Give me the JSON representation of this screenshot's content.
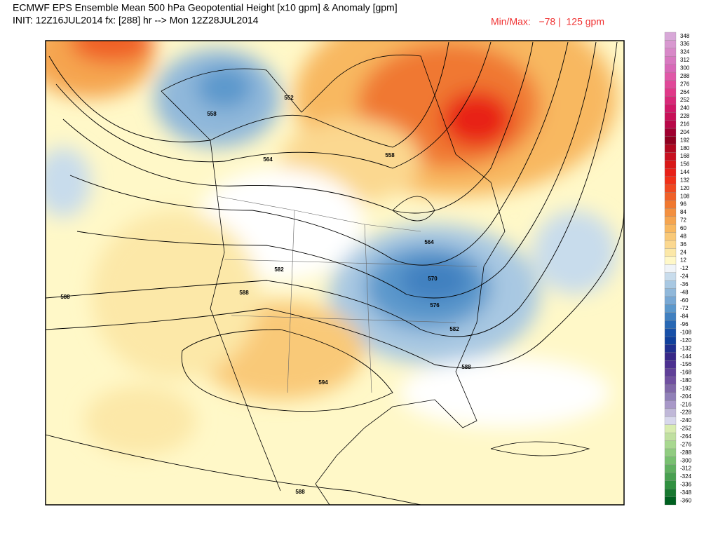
{
  "header": {
    "title": "ECMWF EPS Ensemble Mean 500 hPa Geopotential Height [x10 gpm] & Anomaly [gpm]",
    "init": "INIT: 12Z16JUL2014 fx: [288] hr --> Mon 12Z28JUL2014",
    "min_max": "Min/Max:   −78 |  125 gpm"
  },
  "contour_labels": [
    "552",
    "558",
    "564",
    "558",
    "564",
    "582",
    "588",
    "570",
    "576",
    "582",
    "588",
    "594",
    "588",
    "588"
  ],
  "colorbar": {
    "levels": [
      348,
      336,
      324,
      312,
      300,
      288,
      276,
      264,
      252,
      240,
      228,
      216,
      204,
      192,
      180,
      168,
      156,
      144,
      132,
      120,
      108,
      96,
      84,
      72,
      60,
      48,
      36,
      24,
      12,
      -12,
      -24,
      -36,
      -48,
      -60,
      -72,
      -84,
      -96,
      -108,
      -120,
      -132,
      -144,
      -156,
      -168,
      -180,
      -192,
      -204,
      -216,
      -228,
      -240,
      -252,
      -264,
      -276,
      -288,
      -300,
      -312,
      -324,
      -336,
      -348,
      -360
    ],
    "colors": [
      "#d8a8d8",
      "#d898d0",
      "#d888c8",
      "#d878c0",
      "#d868b8",
      "#e058a8",
      "#e04898",
      "#e03888",
      "#d82878",
      "#d01868",
      "#c81058",
      "#b80848",
      "#a00030",
      "#900020",
      "#b00820",
      "#c81020",
      "#d81818",
      "#e82018",
      "#f03018",
      "#f04820",
      "#f06028",
      "#f07830",
      "#f39040",
      "#f5a550",
      "#f8b860",
      "#f9c978",
      "#fbd890",
      "#fce8a8",
      "#fff8c8",
      "#f0f4f8",
      "#c8dcec",
      "#a8c8e2",
      "#90b8da",
      "#78a8d4",
      "#5c98cc",
      "#4080c0",
      "#2868b4",
      "#1850a8",
      "#10409c",
      "#203090",
      "#382888",
      "#4c3090",
      "#604098",
      "#7050a0",
      "#8068a8",
      "#9080b8",
      "#a898c8",
      "#c0b8d8",
      "#d8d8ec",
      "#d8ecb0",
      "#c0e0a0",
      "#a8d890",
      "#90cc80",
      "#78c070",
      "#60b060",
      "#48a050",
      "#309040",
      "#187830",
      "#006020"
    ]
  }
}
